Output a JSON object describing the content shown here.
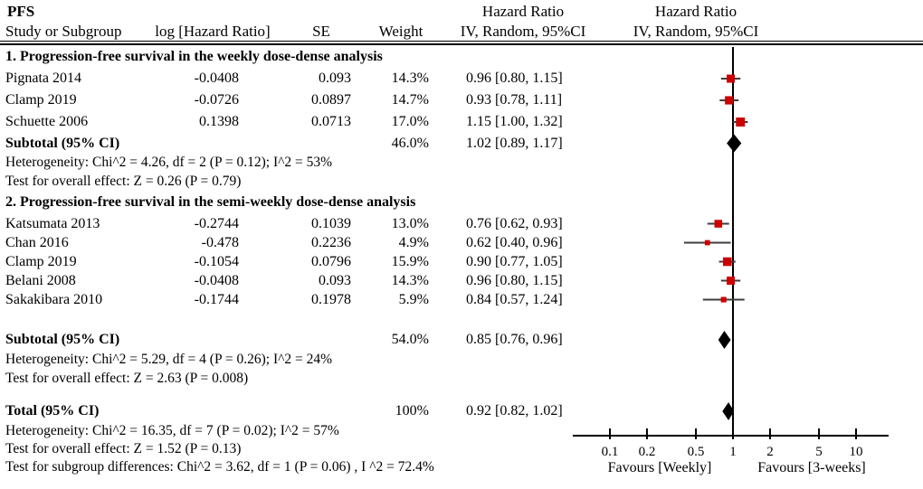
{
  "page": {
    "title": "PFS"
  },
  "table_header": {
    "hazard_ratio_left": "Hazard Ratio",
    "hazard_ratio_right": "Hazard Ratio",
    "study": "Study or Subgroup",
    "log_hr": "log [Hazard Ratio]",
    "se": "SE",
    "weight": "Weight",
    "ci_left": "IV, Random, 95%CI",
    "ci_right": "IV, Random, 95%CI"
  },
  "colors": {
    "marker_red": "#cc0000",
    "ci_line_gray": "#3d3d3d",
    "diamond_black": "#000000",
    "axis_black": "#000000"
  },
  "chart_data": {
    "type": "forest",
    "x_scale": "log10",
    "x_ticks": [
      0.1,
      0.2,
      0.5,
      1,
      2,
      5,
      10
    ],
    "x_range": [
      0.055,
      18
    ],
    "favours_left": "Favours [Weekly]",
    "favours_right": "Favours [3-weeks]",
    "effect_measure": "Hazard Ratio",
    "method": "IV, Random, 95%CI",
    "groups": [
      {
        "label": "1. Progression-free survival in the weekly dose-dense analysis",
        "studies": [
          {
            "study": "Pignata 2014",
            "log_hr": "-0.0408",
            "se": "0.093",
            "weight": "14.3%",
            "ci_text": "0.96 [0.80, 1.15]",
            "hr": 0.96,
            "lo": 0.8,
            "hi": 1.15,
            "wt": 14.3
          },
          {
            "study": "Clamp 2019",
            "log_hr": "-0.0726",
            "se": "0.0897",
            "weight": "14.7%",
            "ci_text": "0.93 [0.78, 1.11]",
            "hr": 0.93,
            "lo": 0.78,
            "hi": 1.11,
            "wt": 14.7
          },
          {
            "study": "Schuette 2006",
            "log_hr": "0.1398",
            "se": "0.0713",
            "weight": "17.0%",
            "ci_text": "1.15 [1.00, 1.32]",
            "hr": 1.15,
            "lo": 1.0,
            "hi": 1.32,
            "wt": 17.0
          }
        ],
        "subtotal": {
          "label": "Subtotal (95% CI)",
          "weight": "46.0%",
          "ci_text": "1.02 [0.89, 1.17]",
          "hr": 1.02,
          "lo": 0.89,
          "hi": 1.17
        },
        "heterogeneity": "Heterogeneity: Chi^2 = 4.26, df = 2 (P = 0.12); I^2 = 53%",
        "overall_effect": "Test for overall effect: Z = 0.26 (P = 0.79)"
      },
      {
        "label": "2. Progression-free survival in the semi-weekly dose-dense analysis",
        "studies": [
          {
            "study": "Katsumata 2013",
            "log_hr": "-0.2744",
            "se": "0.1039",
            "weight": "13.0%",
            "ci_text": "0.76 [0.62, 0.93]",
            "hr": 0.76,
            "lo": 0.62,
            "hi": 0.93,
            "wt": 13.0
          },
          {
            "study": "Chan 2016",
            "log_hr": "-0.478",
            "se": "0.2236",
            "weight": "4.9%",
            "ci_text": "0.62 [0.40, 0.96]",
            "hr": 0.62,
            "lo": 0.4,
            "hi": 0.96,
            "wt": 4.9
          },
          {
            "study": "Clamp 2019",
            "log_hr": "-0.1054",
            "se": "0.0796",
            "weight": "15.9%",
            "ci_text": "0.90  [0.77, 1.05]",
            "hr": 0.9,
            "lo": 0.77,
            "hi": 1.05,
            "wt": 15.9
          },
          {
            "study": "Belani 2008",
            "log_hr": "-0.0408",
            "se": "0.093",
            "weight": "14.3%",
            "ci_text": "0.96 [0.80, 1.15]",
            "hr": 0.96,
            "lo": 0.8,
            "hi": 1.15,
            "wt": 14.3
          },
          {
            "study": "Sakakibara 2010",
            "log_hr": "-0.1744",
            "se": "0.1978",
            "weight": "5.9%",
            "ci_text": "0.84 [0.57, 1.24]",
            "hr": 0.84,
            "lo": 0.57,
            "hi": 1.24,
            "wt": 5.9
          }
        ],
        "subtotal": {
          "label": "Subtotal (95% CI)",
          "weight": "54.0%",
          "ci_text": "0.85 [0.76, 0.96]",
          "hr": 0.85,
          "lo": 0.76,
          "hi": 0.96
        },
        "heterogeneity": "Heterogeneity: Chi^2 = 5.29, df = 4 (P = 0.26); I^2 = 24%",
        "overall_effect": "Test for overall effect: Z = 2.63 (P = 0.008)"
      }
    ],
    "total": {
      "label": "Total (95% CI)",
      "weight": "100%",
      "ci_text": "0.92 [0.82, 1.02]",
      "hr": 0.92,
      "lo": 0.82,
      "hi": 1.02
    },
    "total_notes": [
      "Heterogeneity: Chi^2 = 16.35, df = 7 (P = 0.02); I^2 = 57%",
      "Test for overall effect: Z = 1.52 (P = 0.13)",
      "Test for subgroup differences: Chi^2 = 3.62, df = 1 (P = 0.06) , I ^2 = 72.4%"
    ]
  }
}
